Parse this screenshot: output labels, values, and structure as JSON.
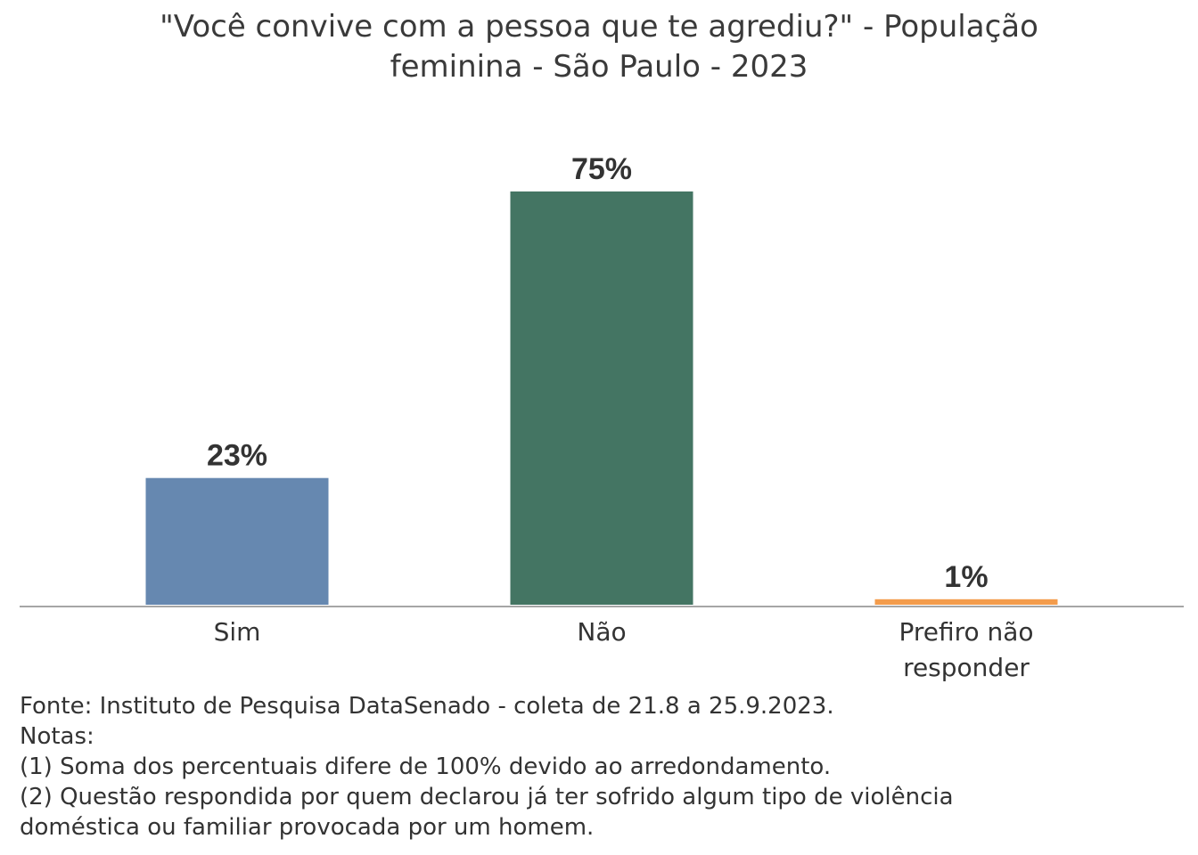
{
  "title_lines": [
    "\"Você convive com a pessoa que te agrediu?\" - População",
    "feminina - São Paulo - 2023"
  ],
  "chart_data": {
    "type": "bar",
    "title": "\"Você convive com a pessoa que te agrediu?\" - População feminina - São Paulo - 2023",
    "categories": [
      [
        "Sim"
      ],
      [
        "Não"
      ],
      [
        "Prefiro não",
        "responder"
      ]
    ],
    "values": [
      23,
      75,
      1
    ],
    "data_labels": [
      "23%",
      "75%",
      "1%"
    ],
    "colors": [
      "#6688b0",
      "#447563",
      "#f39c4c"
    ],
    "ylim": [
      0,
      75
    ],
    "grid": false,
    "legend": "none"
  },
  "source_notes": [
    "Fonte: Instituto de Pesquisa DataSenado - coleta de 21.8 a 25.9.2023.",
    "Notas:",
    "(1) Soma dos percentuais difere de 100% devido ao arredondamento.",
    "(2) Questão respondida por quem declarou já ter sofrido algum tipo de violência",
    "doméstica ou familiar provocada por um homem."
  ]
}
